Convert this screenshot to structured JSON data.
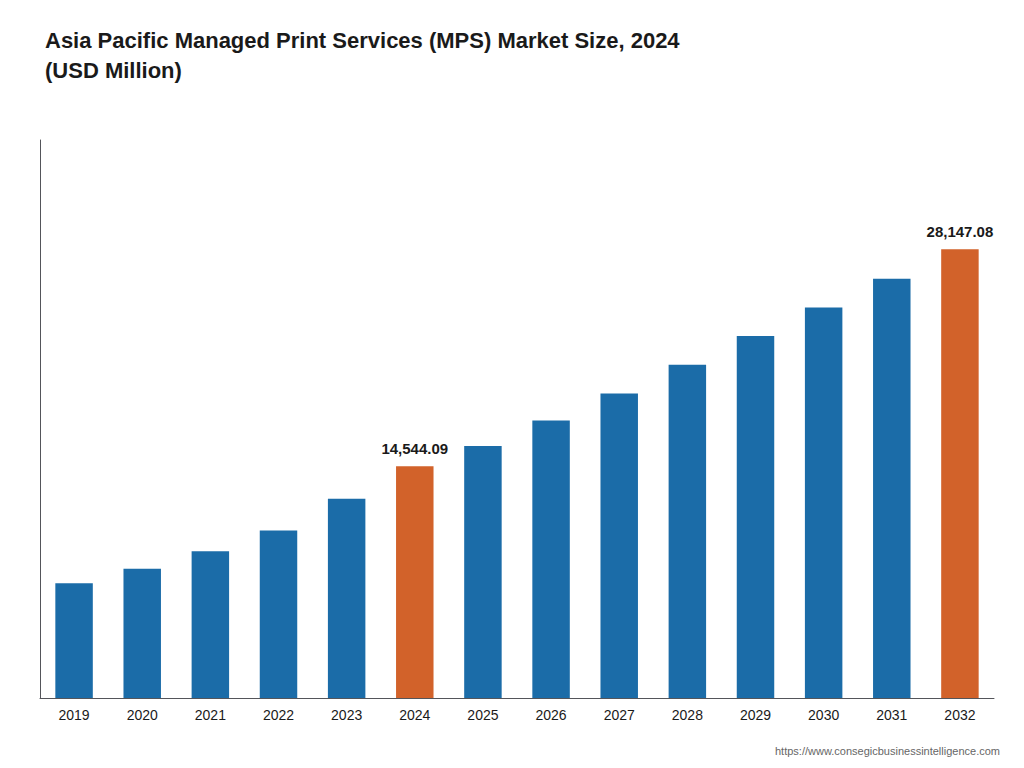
{
  "chart_data": {
    "type": "bar",
    "title": "Asia Pacific Managed Print Services (MPS) Market Size, 2024\n(USD Million)",
    "categories": [
      "2019",
      "2020",
      "2021",
      "2022",
      "2023",
      "2024",
      "2025",
      "2026",
      "2027",
      "2028",
      "2029",
      "2030",
      "2031",
      "2032"
    ],
    "values": [
      7200,
      8100,
      9200,
      10500,
      12500,
      14544.09,
      15800,
      17400,
      19100,
      20900,
      22700,
      24500,
      26300,
      28147.08
    ],
    "colors": [
      "#1b6ca8",
      "#1b6ca8",
      "#1b6ca8",
      "#1b6ca8",
      "#1b6ca8",
      "#d2622a",
      "#1b6ca8",
      "#1b6ca8",
      "#1b6ca8",
      "#1b6ca8",
      "#1b6ca8",
      "#1b6ca8",
      "#1b6ca8",
      "#d2622a"
    ],
    "annotations": [
      {
        "x": "2024",
        "y": 14544.09,
        "text": "14,544.09"
      },
      {
        "x": "2032",
        "y": 28147.08,
        "text": "28,147.08"
      },
      {
        "text": "https://www.consegicbusinessintelligence.com"
      }
    ],
    "ylim": [
      0,
      35000
    ],
    "grid": false,
    "tick_labels": "x"
  }
}
